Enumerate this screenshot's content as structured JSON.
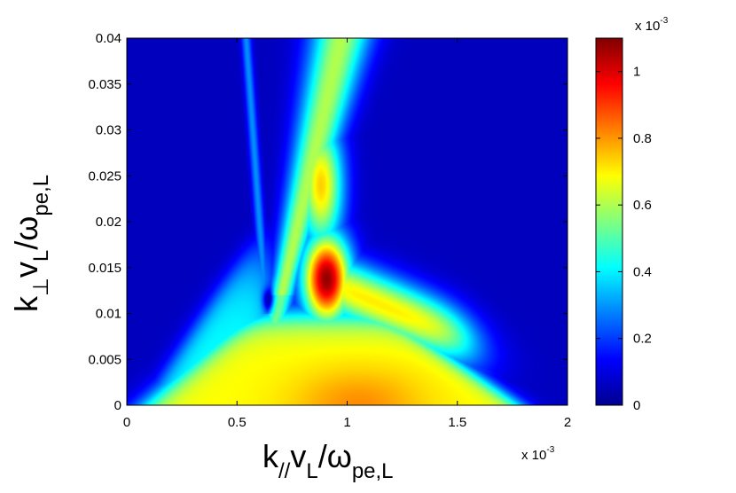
{
  "chart_data": {
    "type": "heatmap",
    "xlabel": {
      "base": "k",
      "sub1": "//",
      "mid": "v",
      "sub2": "L",
      "slash": "/ω",
      "sub3": "pe,L"
    },
    "ylabel": {
      "base": "k",
      "sub1": "⊥",
      "mid": "v",
      "sub2": "L",
      "slash": "/ω",
      "sub3": "pe,L"
    },
    "x_exponent": {
      "text": "x 10",
      "power": "-3"
    },
    "colorbar_exponent": {
      "text": "x 10",
      "power": "-3"
    },
    "xlim": [
      0,
      0.002
    ],
    "ylim": [
      0,
      0.04
    ],
    "zlim": [
      0,
      0.0011
    ],
    "colormap": "jet",
    "x_ticks": [
      {
        "value": 0,
        "label": "0"
      },
      {
        "value": 0.0005,
        "label": "0.5"
      },
      {
        "value": 0.001,
        "label": "1"
      },
      {
        "value": 0.0015,
        "label": "1.5"
      },
      {
        "value": 0.002,
        "label": "2"
      }
    ],
    "y_ticks": [
      {
        "value": 0,
        "label": "0"
      },
      {
        "value": 0.005,
        "label": "0.005"
      },
      {
        "value": 0.01,
        "label": "0.01"
      },
      {
        "value": 0.015,
        "label": "0.015"
      },
      {
        "value": 0.02,
        "label": "0.02"
      },
      {
        "value": 0.025,
        "label": "0.025"
      },
      {
        "value": 0.03,
        "label": "0.03"
      },
      {
        "value": 0.035,
        "label": "0.035"
      },
      {
        "value": 0.04,
        "label": "0.04"
      }
    ],
    "colorbar_ticks": [
      {
        "value": 0,
        "label": "0"
      },
      {
        "value": 0.0002,
        "label": "0.2"
      },
      {
        "value": 0.0004,
        "label": "0.4"
      },
      {
        "value": 0.0006,
        "label": "0.6"
      },
      {
        "value": 0.0008,
        "label": "0.8"
      },
      {
        "value": 0.001,
        "label": "1"
      }
    ],
    "features": [
      {
        "kind": "peak",
        "x": 0.00091,
        "y": 0.0135,
        "z": 0.0011
      },
      {
        "kind": "ridge",
        "x_start": 0.00065,
        "y_start": 0.013,
        "x_end": 0.00095,
        "y_end": 0.04,
        "z": 0.0005
      },
      {
        "kind": "ridge",
        "x_start": 0.00065,
        "y_start": 0.01,
        "x_end": 0.00053,
        "y_end": 0.04,
        "z": 0.0002
      },
      {
        "kind": "plateau",
        "x_start": 0.0002,
        "x_end": 0.00175,
        "y_start": 0,
        "y_end": 0.009,
        "z": 0.0006
      }
    ]
  }
}
